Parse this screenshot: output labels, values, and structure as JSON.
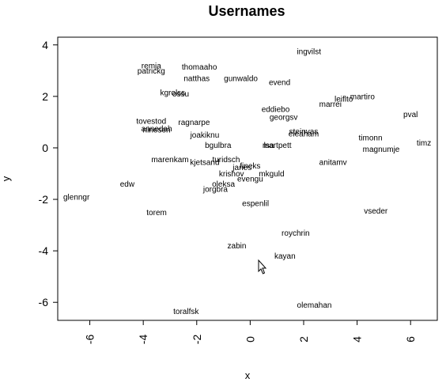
{
  "chart_data": {
    "type": "scatter",
    "title": "Usernames",
    "xlabel": "x",
    "ylabel": "y",
    "xlim": [
      -7.2,
      7.0
    ],
    "ylim": [
      -6.7,
      4.3
    ],
    "xticks": [
      -6,
      -4,
      -2,
      0,
      2,
      4,
      6
    ],
    "yticks": [
      -6,
      -4,
      -2,
      0,
      2,
      4
    ],
    "xtick_labels": [
      "-6",
      "-4",
      "-2",
      "0",
      "2",
      "4",
      "6"
    ],
    "ytick_labels": [
      "-6",
      "-4",
      "-2",
      "0",
      "2",
      "4"
    ],
    "grid": false,
    "legend": "none",
    "points": [
      {
        "label": "ingvilst",
        "x": 2.2,
        "y": 3.75
      },
      {
        "label": "remja",
        "x": -3.7,
        "y": 3.2
      },
      {
        "label": "thomaaho",
        "x": -1.9,
        "y": 3.15
      },
      {
        "label": "patrickg",
        "x": -3.7,
        "y": 3.0
      },
      {
        "label": "natthas",
        "x": -2.0,
        "y": 2.7
      },
      {
        "label": "gunwaldo",
        "x": -0.35,
        "y": 2.7
      },
      {
        "label": "evend",
        "x": 1.1,
        "y": 2.55
      },
      {
        "label": "kgrolss",
        "x": -2.9,
        "y": 2.15
      },
      {
        "label": "ossu",
        "x": -2.6,
        "y": 2.1
      },
      {
        "label": "leiflto",
        "x": 3.5,
        "y": 1.9
      },
      {
        "label": "martiro",
        "x": 4.2,
        "y": 2.0
      },
      {
        "label": "marrei",
        "x": 3.0,
        "y": 1.7
      },
      {
        "label": "eddiebo",
        "x": 0.95,
        "y": 1.5
      },
      {
        "label": "pval",
        "x": 6.0,
        "y": 1.3
      },
      {
        "label": "georgsv",
        "x": 1.25,
        "y": 1.2
      },
      {
        "label": "tovestod",
        "x": -3.7,
        "y": 1.05
      },
      {
        "label": "ragnarpe",
        "x": -2.1,
        "y": 1.0
      },
      {
        "label": "annedah",
        "x": -3.5,
        "y": 0.75
      },
      {
        "label": "ninesen",
        "x": -3.5,
        "y": 0.7
      },
      {
        "label": "steinvas",
        "x": 2.0,
        "y": 0.65
      },
      {
        "label": "eleaham",
        "x": 2.0,
        "y": 0.55
      },
      {
        "label": "joakiknu",
        "x": -1.7,
        "y": 0.5
      },
      {
        "label": "timonn",
        "x": 4.5,
        "y": 0.4
      },
      {
        "label": "timz",
        "x": 6.5,
        "y": 0.2
      },
      {
        "label": "bgulbra",
        "x": -1.2,
        "y": 0.1
      },
      {
        "label": "lsa",
        "x": 0.7,
        "y": 0.1
      },
      {
        "label": "martpett",
        "x": 1.0,
        "y": 0.1
      },
      {
        "label": "magnumje",
        "x": 4.9,
        "y": -0.05
      },
      {
        "label": "marenkam",
        "x": -3.0,
        "y": -0.45
      },
      {
        "label": "turidsch",
        "x": -0.9,
        "y": -0.45
      },
      {
        "label": "kjetsand",
        "x": -1.7,
        "y": -0.55
      },
      {
        "label": "anitamv",
        "x": 3.1,
        "y": -0.55
      },
      {
        "label": "fineks",
        "x": 0.0,
        "y": -0.7
      },
      {
        "label": "janes",
        "x": -0.3,
        "y": -0.75
      },
      {
        "label": "krishov",
        "x": -0.7,
        "y": -1.0
      },
      {
        "label": "mkguld",
        "x": 0.8,
        "y": -1.0
      },
      {
        "label": "evengu",
        "x": 0.0,
        "y": -1.2
      },
      {
        "label": "edw",
        "x": -4.6,
        "y": -1.4
      },
      {
        "label": "oleksa",
        "x": -1.0,
        "y": -1.4
      },
      {
        "label": "jorgbra",
        "x": -1.3,
        "y": -1.6
      },
      {
        "label": "glenngr",
        "x": -6.5,
        "y": -1.9
      },
      {
        "label": "espenlil",
        "x": 0.2,
        "y": -2.15
      },
      {
        "label": "torem",
        "x": -3.5,
        "y": -2.5
      },
      {
        "label": "vseder",
        "x": 4.7,
        "y": -2.45
      },
      {
        "label": "roychrin",
        "x": 1.7,
        "y": -3.3
      },
      {
        "label": "zabin",
        "x": -0.5,
        "y": -3.8
      },
      {
        "label": "kayan",
        "x": 1.3,
        "y": -4.2
      },
      {
        "label": "olemahan",
        "x": 2.4,
        "y": -6.1
      },
      {
        "label": "toralfsk",
        "x": -2.4,
        "y": -6.35
      }
    ]
  }
}
